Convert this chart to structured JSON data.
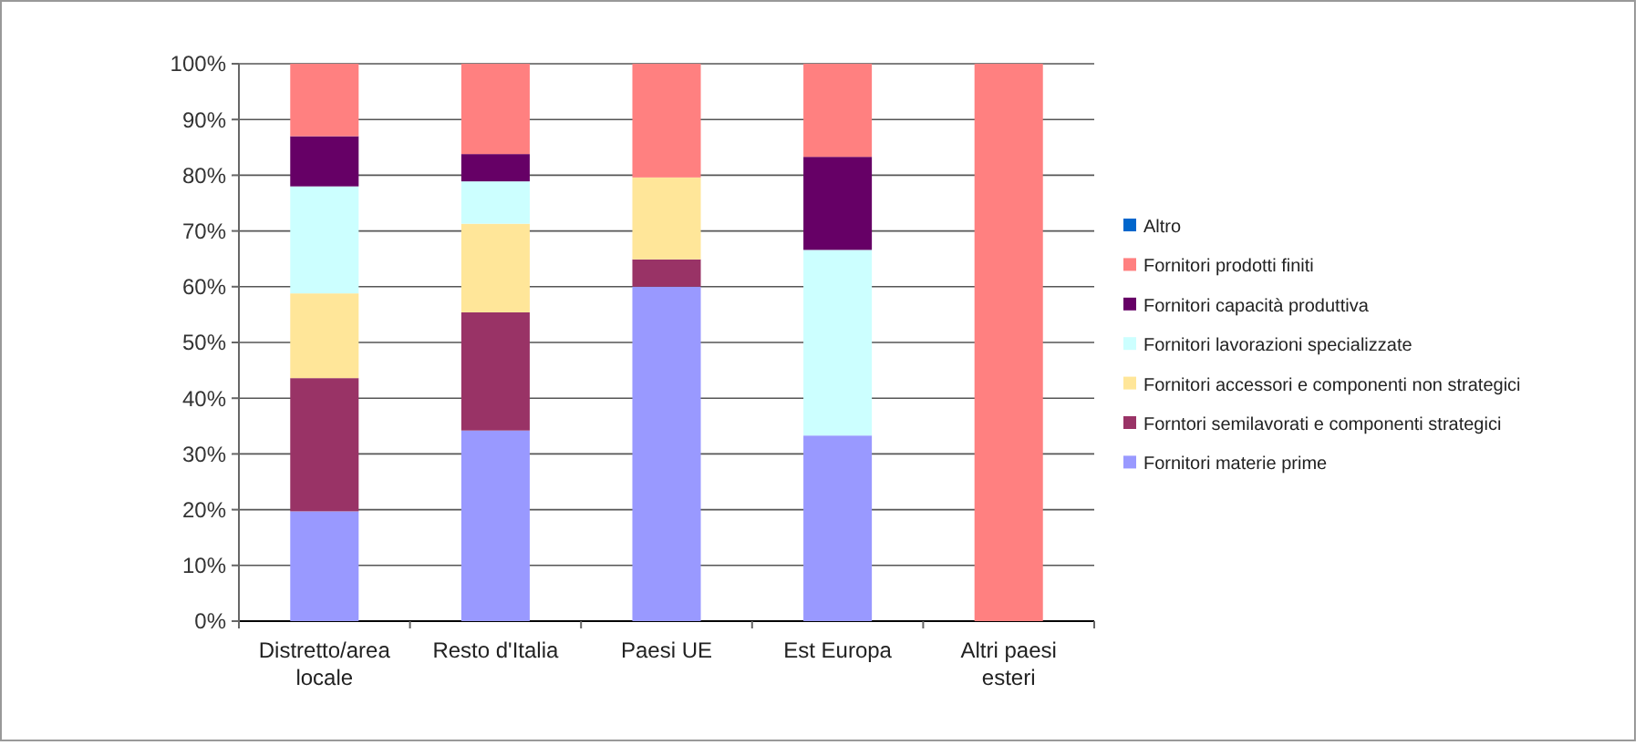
{
  "chart_data": {
    "type": "bar",
    "stacked": true,
    "categories": [
      "Distretto/area locale",
      "Resto d'Italia",
      "Paesi UE",
      "Est Europa",
      "Altri paesi esteri"
    ],
    "series": [
      {
        "name": "Fornitori materie prime",
        "color": "#9999ff",
        "values": [
          19.7,
          34.2,
          60,
          33.3,
          0
        ]
      },
      {
        "name": "Forntori semilavorati e componenti strategici",
        "color": "#993366",
        "values": [
          23.9,
          21.2,
          4.9,
          0,
          0
        ]
      },
      {
        "name": "Fornitori accessori e componenti non strategici",
        "color": "#ffe699",
        "values": [
          15.2,
          15.9,
          14.7,
          0,
          0
        ]
      },
      {
        "name": "Fornitori lavorazioni specializzate",
        "color": "#ccffff",
        "values": [
          19.2,
          7.6,
          0,
          33.3,
          0
        ]
      },
      {
        "name": "Fornitori capacità produttiva",
        "color": "#660066",
        "values": [
          9,
          4.9,
          0,
          16.7,
          0
        ]
      },
      {
        "name": "Fornitori prodotti finiti",
        "color": "#ff8080",
        "values": [
          13,
          16.2,
          20.4,
          16.7,
          100
        ]
      },
      {
        "name": "Altro",
        "color": "#0066cc",
        "values": [
          0,
          0,
          0,
          0,
          0
        ]
      }
    ],
    "ylim": [
      0,
      100
    ],
    "yticks": [
      {
        "value": 0,
        "label": "0%"
      },
      {
        "value": 10,
        "label": "10%"
      },
      {
        "value": 20,
        "label": "20%"
      },
      {
        "value": 30,
        "label": "30%"
      },
      {
        "value": 40,
        "label": "40%"
      },
      {
        "value": 50,
        "label": "50%"
      },
      {
        "value": 60,
        "label": "60%"
      },
      {
        "value": 70,
        "label": "70%"
      },
      {
        "value": 80,
        "label": "80%"
      },
      {
        "value": 90,
        "label": "90%"
      },
      {
        "value": 100,
        "label": "100%"
      }
    ],
    "grid": "y",
    "legend": "right"
  }
}
